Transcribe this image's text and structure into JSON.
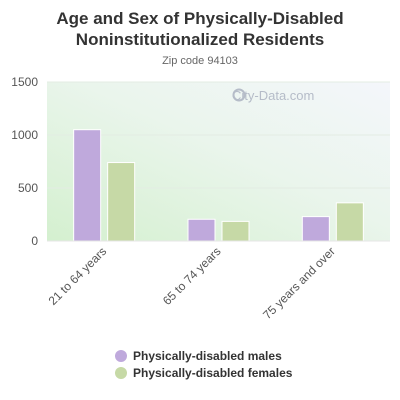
{
  "title": "Age and Sex of Physically-Disabled Noninstitutionalized Residents",
  "subtitle": "Zip code 94103",
  "watermark": "City-Data.com",
  "colors": {
    "males": "#bfa9dc",
    "females": "#c6d9a6",
    "axis": "#555555"
  },
  "chart_data": {
    "type": "bar",
    "categories": [
      "21 to 64 years",
      "65 to 74 years",
      "75 years and over"
    ],
    "series": [
      {
        "name": "Physically-disabled males",
        "values": [
          1050,
          205,
          230
        ]
      },
      {
        "name": "Physically-disabled females",
        "values": [
          740,
          185,
          360
        ]
      }
    ],
    "yticks": [
      "0",
      "500",
      "1000",
      "1500"
    ],
    "ylim": [
      0,
      1500
    ],
    "grid": true,
    "legend_position": "bottom"
  }
}
